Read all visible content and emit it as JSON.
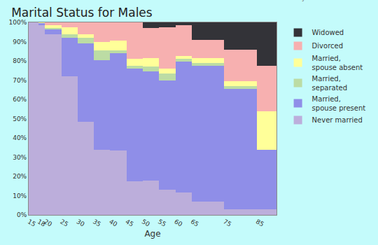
{
  "chart_data": {
    "type": "bar",
    "stacked": true,
    "title": "Marital Status for Males",
    "x_label": "Age",
    "annotations": [
      "city-data.com"
    ],
    "x": [
      15,
      18,
      20,
      25,
      30,
      35,
      40,
      45,
      50,
      55,
      60,
      65,
      75,
      85
    ],
    "widths": [
      3,
      2,
      5,
      5,
      5,
      5,
      5,
      5,
      5,
      5,
      5,
      10,
      10,
      6
    ],
    "series": [
      {
        "name": "Never married",
        "color": "#bcaedb",
        "values": [
          100,
          98.5,
          94,
          72,
          48.5,
          34,
          33.5,
          17.5,
          18,
          13,
          11.5,
          7,
          3,
          3
        ]
      },
      {
        "name": "Married, spouse present",
        "color": "#8f8ee8",
        "values": [
          0,
          1,
          2.5,
          20,
          40.5,
          46.5,
          50.5,
          58.5,
          56.5,
          57,
          68,
          70.5,
          62.5,
          31
        ]
      },
      {
        "name": "Married, separated",
        "color": "#bcdca4",
        "values": [
          0,
          0,
          0.5,
          2,
          3,
          5,
          1.5,
          1.5,
          2.5,
          3.5,
          1.5,
          1.5,
          1.5,
          0
        ]
      },
      {
        "name": "Married, spouse absent",
        "color": "#ffff99",
        "values": [
          0,
          0.5,
          1.5,
          3.5,
          2,
          4.5,
          5,
          3.5,
          4.5,
          2.5,
          1.5,
          2.5,
          2.5,
          20
        ]
      },
      {
        "name": "Divorced",
        "color": "#f7b0b0",
        "values": [
          0,
          0,
          1.5,
          2.5,
          6,
          10,
          9.5,
          19,
          15.5,
          21.5,
          16,
          9.5,
          16.5,
          23.5
        ]
      },
      {
        "name": "Widowed",
        "color": "#333338",
        "values": [
          0,
          0,
          0,
          0,
          0,
          0,
          0,
          0,
          3,
          2.5,
          1.5,
          9,
          14,
          22.5
        ]
      }
    ],
    "xlim": [
      15,
      91
    ],
    "xticks": [
      15,
      18,
      20,
      25,
      30,
      35,
      40,
      45,
      50,
      55,
      60,
      65,
      75,
      85
    ],
    "ylim": [
      0,
      100
    ],
    "yticks": [
      {
        "value": 0,
        "label": "0%"
      },
      {
        "value": 10,
        "label": "10%"
      },
      {
        "value": 20,
        "label": "20%"
      },
      {
        "value": 30,
        "label": "30%"
      },
      {
        "value": 40,
        "label": "40%"
      },
      {
        "value": 50,
        "label": "50%"
      },
      {
        "value": 60,
        "label": "60%"
      },
      {
        "value": 70,
        "label": "70%"
      },
      {
        "value": 80,
        "label": "80%"
      },
      {
        "value": 90,
        "label": "90%"
      },
      {
        "value": 100,
        "label": "100%"
      }
    ],
    "grid": true,
    "legend": "right"
  }
}
